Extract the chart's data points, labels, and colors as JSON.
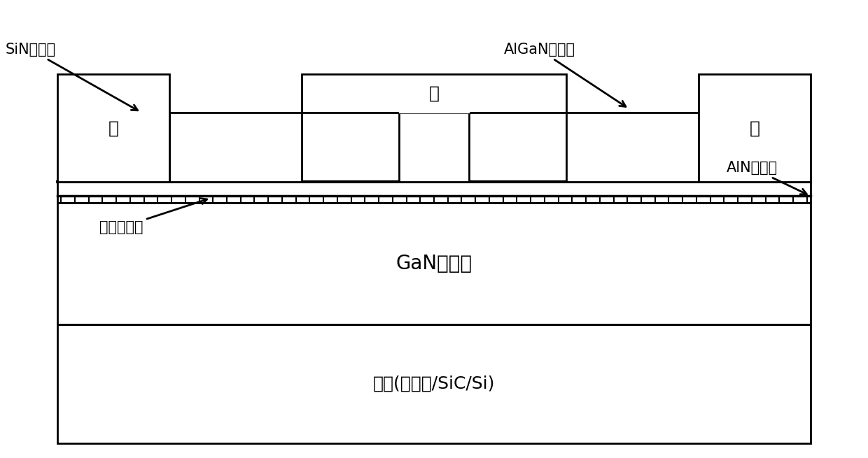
{
  "bg_color": "#ffffff",
  "line_color": "#000000",
  "fig_width": 12.4,
  "fig_height": 6.55,
  "labels": {
    "sin_passivation": "SiN钝化层",
    "algan_barrier": "AlGaN势垒层",
    "aln_insert": "AlN插入层",
    "2deg": "二维电子气",
    "gan_buffer": "GaN缓冲层",
    "substrate": "衬底(蓝宝石/SiC/Si)",
    "gate": "栅",
    "source": "源",
    "drain": "漏"
  },
  "font_size_annotation": 15,
  "font_size_inner": 18,
  "font_size_large": 20,
  "lw": 2.0
}
